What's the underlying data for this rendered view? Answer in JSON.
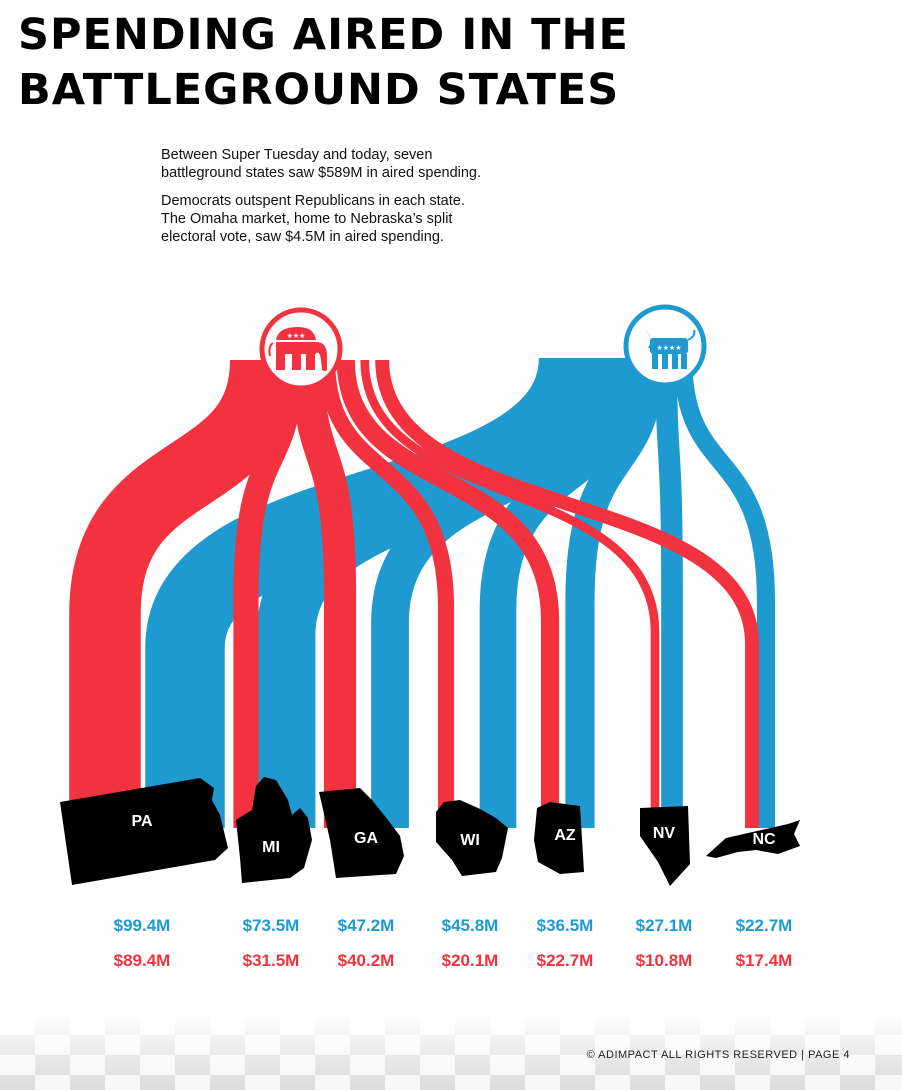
{
  "title_lines": [
    "SPENDING AIRED IN THE",
    "BATTLEGROUND STATES"
  ],
  "intro": {
    "p1_line1": "Between Super Tuesday and today, seven",
    "p1_line2": "battleground states saw $589M in aired spending.",
    "p2_line1": "Democrats outspent Republicans in each state.",
    "p2_line2": "The Omaha market, home to Nebraska’s split",
    "p2_line3": "electoral vote, saw $4.5M in aired spending."
  },
  "colors": {
    "republican": "#f2333f",
    "democrat": "#1f9ad1",
    "state_fill": "#000000",
    "state_label": "#ffffff"
  },
  "icons": {
    "republican": "republican-elephant-icon",
    "democrat": "democrat-donkey-icon"
  },
  "chart_data": {
    "type": "sankey",
    "title": "SPENDING AIRED IN THE BATTLEGROUND STATES",
    "sources": [
      "Republican",
      "Democrat"
    ],
    "categories": [
      "PA",
      "MI",
      "GA",
      "WI",
      "AZ",
      "NV",
      "NC"
    ],
    "series": [
      {
        "party": "Democrat",
        "values": [
          99.4,
          73.5,
          47.2,
          45.8,
          36.5,
          27.1,
          22.7
        ],
        "labels": [
          "$99.4M",
          "$73.5M",
          "$47.2M",
          "$45.8M",
          "$36.5M",
          "$27.1M",
          "$22.7M"
        ]
      },
      {
        "party": "Republican",
        "values": [
          89.4,
          31.5,
          40.2,
          20.1,
          22.7,
          10.8,
          17.4
        ],
        "labels": [
          "$89.4M",
          "$31.5M",
          "$40.2M",
          "$20.1M",
          "$22.7M",
          "$10.8M",
          "$17.4M"
        ]
      }
    ],
    "unit": "M"
  },
  "footer": "© ADIMPACT ALL RIGHTS RESERVED | PAGE 4"
}
